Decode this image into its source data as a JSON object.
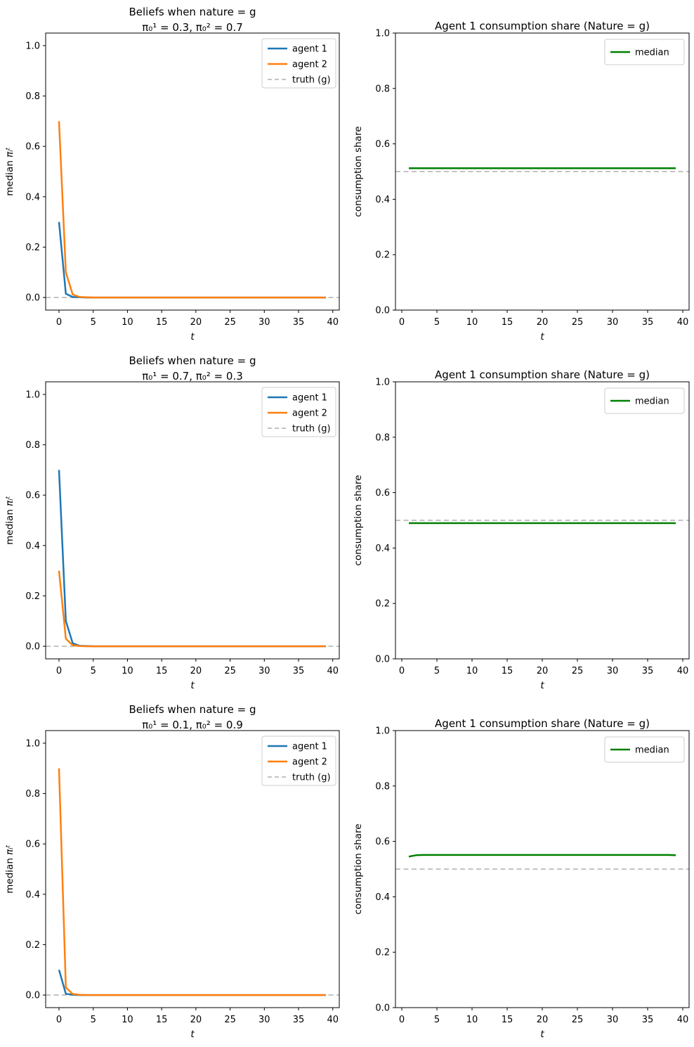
{
  "figure": {
    "background": "#ffffff",
    "colors": {
      "agent1": "#1f77b4",
      "agent2": "#ff7f0e",
      "median": "#008000",
      "truth": "#bbbbbb",
      "axes": "#000000",
      "legend_border": "#cccccc"
    }
  },
  "chart_data": [
    {
      "id": "beliefs-row1",
      "type": "line",
      "panel": "left",
      "title": "Beliefs when nature = g",
      "subtitle": "π₀¹ = 0.3, π₀² = 0.7",
      "xlabel": "t",
      "ylabel": "median ",
      "ylabel_math": "πᵢᵗ",
      "xlim": [
        -1.95,
        40.95
      ],
      "ylim": [
        -0.05,
        1.05
      ],
      "xticks": [
        0,
        5,
        10,
        15,
        20,
        25,
        30,
        35,
        40
      ],
      "yticks": [
        0.0,
        0.2,
        0.4,
        0.6,
        0.8,
        1.0
      ],
      "ytick_decimals": 1,
      "grid": false,
      "legend": {
        "position": "upper right",
        "entries": [
          {
            "label": "agent 1",
            "color_key": "agent1",
            "dash": false
          },
          {
            "label": "agent 2",
            "color_key": "agent2",
            "dash": false
          },
          {
            "label": "truth (g)",
            "color_key": "truth",
            "dash": true
          }
        ]
      },
      "truth_line": {
        "y": 0.0,
        "label": "truth (g)"
      },
      "series": [
        {
          "name": "agent 1",
          "color_key": "agent1",
          "x_start": 0,
          "values": [
            0.3,
            0.015,
            0.002,
            0.001,
            0,
            0,
            0,
            0,
            0,
            0,
            0,
            0,
            0,
            0,
            0,
            0,
            0,
            0,
            0,
            0,
            0,
            0,
            0,
            0,
            0,
            0,
            0,
            0,
            0,
            0,
            0,
            0,
            0,
            0,
            0,
            0,
            0,
            0,
            0,
            0
          ]
        },
        {
          "name": "agent 2",
          "color_key": "agent2",
          "x_start": 0,
          "values": [
            0.7,
            0.1,
            0.012,
            0.002,
            0.001,
            0,
            0,
            0,
            0,
            0,
            0,
            0,
            0,
            0,
            0,
            0,
            0,
            0,
            0,
            0,
            0,
            0,
            0,
            0,
            0,
            0,
            0,
            0,
            0,
            0,
            0,
            0,
            0,
            0,
            0,
            0,
            0,
            0,
            0,
            0
          ]
        }
      ]
    },
    {
      "id": "share-row1",
      "type": "line",
      "panel": "right",
      "title": "Agent 1 consumption share (Nature = g)",
      "subtitle": "",
      "xlabel": "t",
      "ylabel": "consumption share",
      "xlim": [
        -0.9,
        40.9
      ],
      "ylim": [
        0.0,
        1.0
      ],
      "xticks": [
        0,
        5,
        10,
        15,
        20,
        25,
        30,
        35,
        40
      ],
      "yticks": [
        0.0,
        0.2,
        0.4,
        0.6,
        0.8,
        1.0
      ],
      "ytick_decimals": 1,
      "grid": false,
      "legend": {
        "position": "upper right",
        "entries": [
          {
            "label": "median",
            "color_key": "median",
            "dash": false
          }
        ]
      },
      "truth_line": {
        "y": 0.5,
        "label": ""
      },
      "series": [
        {
          "name": "median",
          "color_key": "median",
          "x_start": 1,
          "values": [
            0.512,
            0.512,
            0.512,
            0.512,
            0.512,
            0.512,
            0.512,
            0.512,
            0.512,
            0.512,
            0.512,
            0.512,
            0.512,
            0.512,
            0.512,
            0.512,
            0.512,
            0.512,
            0.512,
            0.512,
            0.512,
            0.512,
            0.512,
            0.512,
            0.512,
            0.512,
            0.512,
            0.512,
            0.512,
            0.512,
            0.512,
            0.512,
            0.512,
            0.512,
            0.512,
            0.512,
            0.512,
            0.512,
            0.512
          ]
        }
      ]
    },
    {
      "id": "beliefs-row2",
      "type": "line",
      "panel": "left",
      "title": "Beliefs when nature = g",
      "subtitle": "π₀¹ = 0.7, π₀² = 0.3",
      "xlabel": "t",
      "ylabel": "median ",
      "ylabel_math": "πᵢᵗ",
      "xlim": [
        -1.95,
        40.95
      ],
      "ylim": [
        -0.05,
        1.05
      ],
      "xticks": [
        0,
        5,
        10,
        15,
        20,
        25,
        30,
        35,
        40
      ],
      "yticks": [
        0.0,
        0.2,
        0.4,
        0.6,
        0.8,
        1.0
      ],
      "ytick_decimals": 1,
      "grid": false,
      "legend": {
        "position": "upper right",
        "entries": [
          {
            "label": "agent 1",
            "color_key": "agent1",
            "dash": false
          },
          {
            "label": "agent 2",
            "color_key": "agent2",
            "dash": false
          },
          {
            "label": "truth (g)",
            "color_key": "truth",
            "dash": true
          }
        ]
      },
      "truth_line": {
        "y": 0.0,
        "label": "truth (g)"
      },
      "series": [
        {
          "name": "agent 1",
          "color_key": "agent1",
          "x_start": 0,
          "values": [
            0.7,
            0.1,
            0.012,
            0.002,
            0.001,
            0,
            0,
            0,
            0,
            0,
            0,
            0,
            0,
            0,
            0,
            0,
            0,
            0,
            0,
            0,
            0,
            0,
            0,
            0,
            0,
            0,
            0,
            0,
            0,
            0,
            0,
            0,
            0,
            0,
            0,
            0,
            0,
            0,
            0,
            0
          ]
        },
        {
          "name": "agent 2",
          "color_key": "agent2",
          "x_start": 0,
          "values": [
            0.3,
            0.03,
            0.004,
            0.001,
            0,
            0,
            0,
            0,
            0,
            0,
            0,
            0,
            0,
            0,
            0,
            0,
            0,
            0,
            0,
            0,
            0,
            0,
            0,
            0,
            0,
            0,
            0,
            0,
            0,
            0,
            0,
            0,
            0,
            0,
            0,
            0,
            0,
            0,
            0,
            0
          ]
        }
      ]
    },
    {
      "id": "share-row2",
      "type": "line",
      "panel": "right",
      "title": "Agent 1 consumption share (Nature = g)",
      "subtitle": "",
      "xlabel": "t",
      "ylabel": "consumption share",
      "xlim": [
        -0.9,
        40.9
      ],
      "ylim": [
        0.0,
        1.0
      ],
      "xticks": [
        0,
        5,
        10,
        15,
        20,
        25,
        30,
        35,
        40
      ],
      "yticks": [
        0.0,
        0.2,
        0.4,
        0.6,
        0.8,
        1.0
      ],
      "ytick_decimals": 1,
      "grid": false,
      "legend": {
        "position": "upper right",
        "entries": [
          {
            "label": "median",
            "color_key": "median",
            "dash": false
          }
        ]
      },
      "truth_line": {
        "y": 0.5,
        "label": ""
      },
      "series": [
        {
          "name": "median",
          "color_key": "median",
          "x_start": 1,
          "values": [
            0.49,
            0.49,
            0.49,
            0.49,
            0.49,
            0.49,
            0.49,
            0.49,
            0.49,
            0.49,
            0.49,
            0.49,
            0.49,
            0.49,
            0.49,
            0.49,
            0.49,
            0.49,
            0.49,
            0.49,
            0.49,
            0.49,
            0.49,
            0.49,
            0.49,
            0.49,
            0.49,
            0.49,
            0.49,
            0.49,
            0.49,
            0.49,
            0.49,
            0.49,
            0.49,
            0.49,
            0.49,
            0.49,
            0.49
          ]
        }
      ]
    },
    {
      "id": "beliefs-row3",
      "type": "line",
      "panel": "left",
      "title": "Beliefs when nature = g",
      "subtitle": "π₀¹ = 0.1, π₀² = 0.9",
      "xlabel": "t",
      "ylabel": "median ",
      "ylabel_math": "πᵢᵗ",
      "xlim": [
        -1.95,
        40.95
      ],
      "ylim": [
        -0.05,
        1.05
      ],
      "xticks": [
        0,
        5,
        10,
        15,
        20,
        25,
        30,
        35,
        40
      ],
      "yticks": [
        0.0,
        0.2,
        0.4,
        0.6,
        0.8,
        1.0
      ],
      "ytick_decimals": 1,
      "grid": false,
      "legend": {
        "position": "upper right",
        "entries": [
          {
            "label": "agent 1",
            "color_key": "agent1",
            "dash": false
          },
          {
            "label": "agent 2",
            "color_key": "agent2",
            "dash": false
          },
          {
            "label": "truth (g)",
            "color_key": "truth",
            "dash": true
          }
        ]
      },
      "truth_line": {
        "y": 0.0,
        "label": "truth (g)"
      },
      "series": [
        {
          "name": "agent 1",
          "color_key": "agent1",
          "x_start": 0,
          "values": [
            0.1,
            0.005,
            0.001,
            0,
            0,
            0,
            0,
            0,
            0,
            0,
            0,
            0,
            0,
            0,
            0,
            0,
            0,
            0,
            0,
            0,
            0,
            0,
            0,
            0,
            0,
            0,
            0,
            0,
            0,
            0,
            0,
            0,
            0,
            0,
            0,
            0,
            0,
            0,
            0,
            0
          ]
        },
        {
          "name": "agent 2",
          "color_key": "agent2",
          "x_start": 0,
          "values": [
            0.9,
            0.03,
            0.004,
            0.001,
            0,
            0,
            0,
            0,
            0,
            0,
            0,
            0,
            0,
            0,
            0,
            0,
            0,
            0,
            0,
            0,
            0,
            0,
            0,
            0,
            0,
            0,
            0,
            0,
            0,
            0,
            0,
            0,
            0,
            0,
            0,
            0,
            0,
            0,
            0,
            0
          ]
        }
      ]
    },
    {
      "id": "share-row3",
      "type": "line",
      "panel": "right",
      "title": "Agent 1 consumption share (Nature = g)",
      "subtitle": "",
      "xlabel": "t",
      "ylabel": "consumption share",
      "xlim": [
        -0.9,
        40.9
      ],
      "ylim": [
        0.0,
        1.0
      ],
      "xticks": [
        0,
        5,
        10,
        15,
        20,
        25,
        30,
        35,
        40
      ],
      "yticks": [
        0.0,
        0.2,
        0.4,
        0.6,
        0.8,
        1.0
      ],
      "ytick_decimals": 1,
      "grid": false,
      "legend": {
        "position": "upper right",
        "entries": [
          {
            "label": "median",
            "color_key": "median",
            "dash": false
          }
        ]
      },
      "truth_line": {
        "y": 0.5,
        "label": ""
      },
      "series": [
        {
          "name": "median",
          "color_key": "median",
          "x_start": 1,
          "values": [
            0.545,
            0.55,
            0.551,
            0.551,
            0.551,
            0.551,
            0.551,
            0.551,
            0.551,
            0.551,
            0.551,
            0.551,
            0.551,
            0.551,
            0.551,
            0.551,
            0.551,
            0.551,
            0.551,
            0.551,
            0.551,
            0.551,
            0.551,
            0.551,
            0.551,
            0.551,
            0.551,
            0.551,
            0.551,
            0.551,
            0.551,
            0.551,
            0.551,
            0.551,
            0.551,
            0.551,
            0.551,
            0.551,
            0.55
          ]
        }
      ]
    }
  ]
}
